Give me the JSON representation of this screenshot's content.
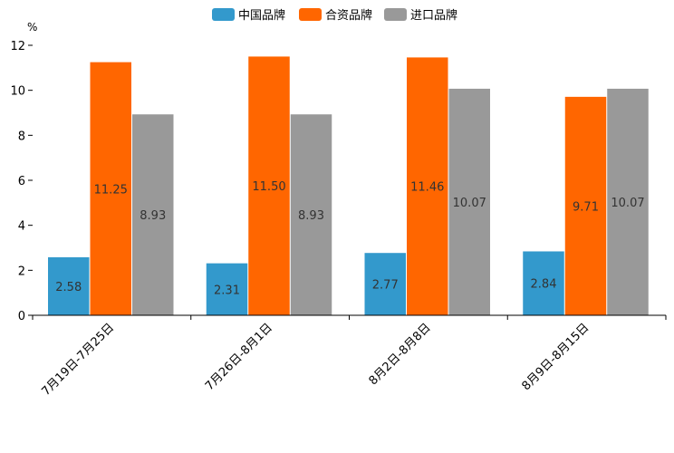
{
  "chart_data": {
    "type": "bar",
    "title": "",
    "xlabel": "",
    "ylabel": "%",
    "ylim": [
      0,
      12
    ],
    "yticks": [
      0,
      2,
      4,
      6,
      8,
      10,
      12
    ],
    "grid": false,
    "legend_position": "top-center",
    "categories": [
      "7月19日-7月25日",
      "7月26日-8月1日",
      "8月2日-8月8日",
      "8月9日-8月15日"
    ],
    "series": [
      {
        "name": "中国品牌",
        "color": "#3399cc",
        "values": [
          2.58,
          2.31,
          2.77,
          2.84
        ],
        "labels": [
          "2.58",
          "2.31",
          "2.77",
          "2.84"
        ]
      },
      {
        "name": "合资品牌",
        "color": "#ff6600",
        "values": [
          11.25,
          11.5,
          11.46,
          9.71
        ],
        "labels": [
          "11.25",
          "11.50",
          "11.46",
          "9.71"
        ]
      },
      {
        "name": "进口品牌",
        "color": "#999999",
        "values": [
          8.93,
          8.93,
          10.07,
          10.07
        ],
        "labels": [
          "8.93",
          "8.93",
          "10.07",
          "10.07"
        ]
      }
    ]
  }
}
